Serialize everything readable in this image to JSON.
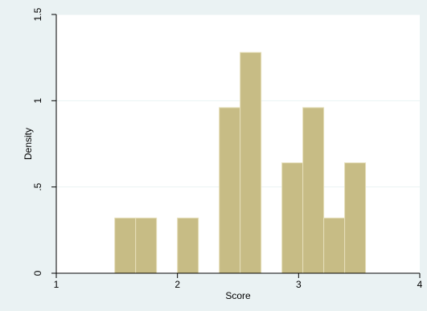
{
  "chart_data": {
    "type": "bar",
    "subtype": "histogram",
    "xlabel": "Score",
    "ylabel": "Density",
    "xlim": [
      1,
      4
    ],
    "ylim": [
      0,
      1.5
    ],
    "x_ticks": [
      1,
      2,
      3,
      4
    ],
    "x_tick_labels": [
      "1",
      "2",
      "3",
      "4"
    ],
    "y_ticks": [
      0,
      0.5,
      1,
      1.5
    ],
    "y_tick_labels": [
      "0",
      ".5",
      "1",
      "1.5"
    ],
    "grid": true,
    "bin_width": 0.1725,
    "bins": [
      {
        "x0": 1.4825,
        "x1": 1.655,
        "density": 0.32
      },
      {
        "x0": 1.655,
        "x1": 1.8275,
        "density": 0.32
      },
      {
        "x0": 1.8275,
        "x1": 2.0,
        "density": 0
      },
      {
        "x0": 2.0,
        "x1": 2.1725,
        "density": 0.32
      },
      {
        "x0": 2.1725,
        "x1": 2.345,
        "density": 0
      },
      {
        "x0": 2.345,
        "x1": 2.5175,
        "density": 0.96
      },
      {
        "x0": 2.5175,
        "x1": 2.69,
        "density": 1.28
      },
      {
        "x0": 2.69,
        "x1": 2.8625,
        "density": 0
      },
      {
        "x0": 2.8625,
        "x1": 3.035,
        "density": 0.64
      },
      {
        "x0": 3.035,
        "x1": 3.2075,
        "density": 0.96
      },
      {
        "x0": 3.2075,
        "x1": 3.38,
        "density": 0.32
      },
      {
        "x0": 3.38,
        "x1": 3.5525,
        "density": 0.64
      }
    ],
    "colors": {
      "bar_fill": "#c7bc85",
      "bar_stroke": "#e6dfba",
      "plot_background": "#ffffff",
      "outer_background": "#eaf2f3",
      "grid": "#eaf2f3",
      "axis": "#000000"
    }
  }
}
